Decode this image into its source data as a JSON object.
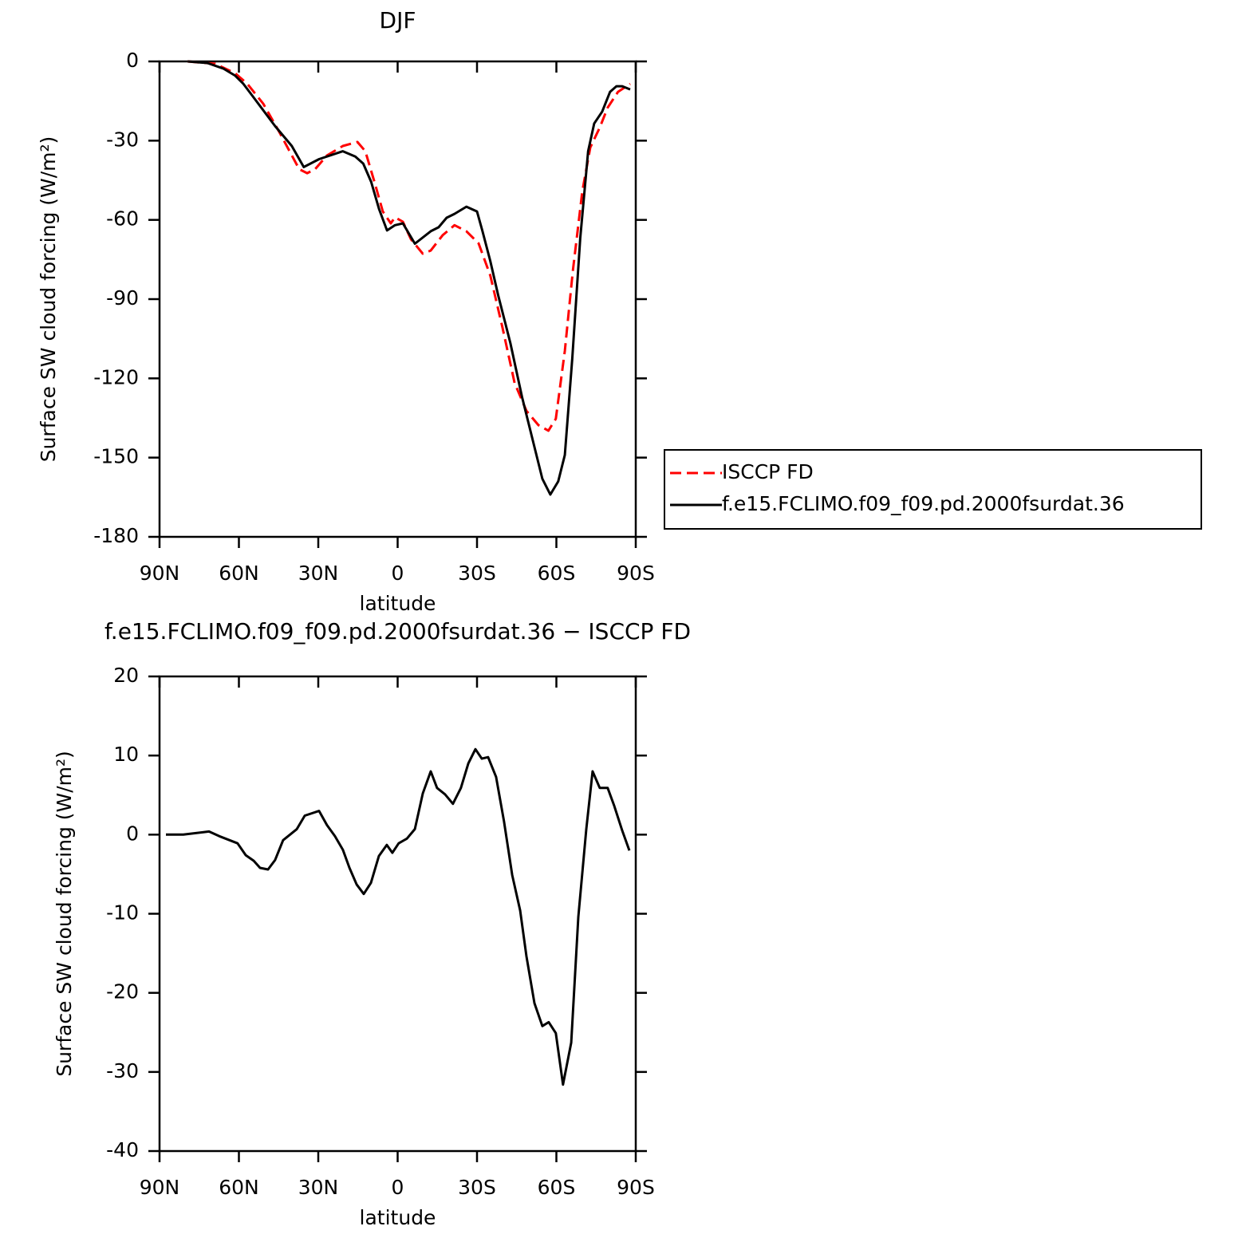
{
  "chart_data": [
    {
      "type": "line",
      "title": "DJF",
      "xlabel": "latitude",
      "ylabel": "Surface SW cloud forcing (W/m²)",
      "xlim": [
        90,
        -90
      ],
      "ylim": [
        -180,
        0
      ],
      "xticks": [
        {
          "value": 90,
          "label": "90N"
        },
        {
          "value": 60,
          "label": "60N"
        },
        {
          "value": 30,
          "label": "30N"
        },
        0,
        {
          "value": -30,
          "label": "30S"
        },
        {
          "value": -60,
          "label": "60S"
        },
        {
          "value": -90,
          "label": "90S"
        }
      ],
      "yticks": [
        0,
        -30,
        -60,
        -90,
        -120,
        -150,
        -180
      ],
      "legend": "outside right",
      "series": [
        {
          "name": "ISCCP FD",
          "color": "#ff0000",
          "dashed": true,
          "x": [
            79.4,
            68.9,
            61.4,
            56.8,
            50.8,
            44.8,
            37.2,
            34.2,
            31.2,
            26.7,
            20.7,
            15.2,
            12.2,
            8.6,
            5.6,
            2.6,
            1.0,
            -2.0,
            -5.0,
            -9.5,
            -12.5,
            -17.0,
            -21.5,
            -26.0,
            -30.6,
            -35.0,
            -39.6,
            -44.2,
            -48.7,
            -53.2,
            -57.0,
            -59.8,
            -63.2,
            -66.2,
            -69.8,
            -72.8,
            -76.4,
            -79.4,
            -83.3,
            -87.9
          ],
          "values": [
            0,
            -0.9,
            -4.5,
            -8.5,
            -16,
            -26.6,
            -40.8,
            -42.3,
            -40.8,
            -35.6,
            -32,
            -30.5,
            -34,
            -46.2,
            -56.8,
            -61.3,
            -59,
            -60.7,
            -67.3,
            -72.8,
            -71.6,
            -65.8,
            -62,
            -64.3,
            -68.9,
            -81,
            -100.6,
            -121.7,
            -132.3,
            -137.7,
            -139.8,
            -135.3,
            -109.6,
            -79.4,
            -49.2,
            -32.6,
            -25,
            -17.5,
            -11.5,
            -8.5
          ]
        },
        {
          "name": "f.e15.FCLIMO.f09_f09.pd.2000fsurdat.36",
          "color": "#000000",
          "dashed": false,
          "x": [
            79.4,
            71.9,
            65.9,
            61.4,
            58.3,
            53.8,
            46.3,
            40.0,
            35.5,
            29.7,
            20.7,
            16.0,
            13.0,
            10.0,
            7.0,
            4.0,
            1.0,
            -2.0,
            -6.5,
            -12.5,
            -15.5,
            -18.5,
            -21.5,
            -26.0,
            -30.0,
            -32.0,
            -35.0,
            -38.0,
            -42.6,
            -47.0,
            -51.7,
            -54.7,
            -57.7,
            -60.7,
            -63.2,
            -66.0,
            -69.0,
            -72.0,
            -74.3,
            -77.3,
            -80.3,
            -82.7,
            -84.9,
            -87.9
          ],
          "values": [
            0,
            -0.6,
            -2.7,
            -5.4,
            -8.5,
            -14.5,
            -24.5,
            -32,
            -40,
            -37,
            -34,
            -36,
            -38.7,
            -45.6,
            -56,
            -64,
            -62,
            -61.3,
            -69,
            -64.3,
            -62.8,
            -59.2,
            -57.7,
            -55,
            -56.8,
            -64,
            -75.5,
            -88.5,
            -106.6,
            -127,
            -146,
            -158,
            -164,
            -159,
            -149,
            -112.6,
            -67,
            -34,
            -23.5,
            -19,
            -11.5,
            -9.4,
            -9.4,
            -10.6
          ]
        }
      ]
    },
    {
      "type": "line",
      "title": "f.e15.FCLIMO.f09_f09.pd.2000fsurdat.36 − ISCCP FD",
      "xlabel": "latitude",
      "ylabel": "Surface SW cloud forcing (W/m²)",
      "xlim": [
        90,
        -90
      ],
      "ylim": [
        -40,
        20
      ],
      "xticks": [
        {
          "value": 90,
          "label": "90N"
        },
        {
          "value": 60,
          "label": "60N"
        },
        {
          "value": 30,
          "label": "30N"
        },
        0,
        {
          "value": -30,
          "label": "30S"
        },
        {
          "value": -60,
          "label": "60S"
        },
        {
          "value": -90,
          "label": "90S"
        }
      ],
      "yticks": [
        20,
        10,
        0,
        -10,
        -20,
        -30,
        -40
      ],
      "series": [
        {
          "color": "#000000",
          "dashed": false,
          "x": [
            87.6,
            81.0,
            71.3,
            67.4,
            60.5,
            57.4,
            54.4,
            52.0,
            49.0,
            46.3,
            43.3,
            38.1,
            35.1,
            29.7,
            26.7,
            23.7,
            20.7,
            18.2,
            15.5,
            12.8,
            10.1,
            7.1,
            4.1,
            2.0,
            -0.4,
            -3.5,
            -6.5,
            -9.5,
            -12.5,
            -14.9,
            -17.9,
            -20.9,
            -23.9,
            -26.7,
            -29.4,
            -31.8,
            -34.2,
            -37.2,
            -40.2,
            -43.3,
            -46.3,
            -48.7,
            -51.7,
            -54.7,
            -57.1,
            -59.8,
            -62.5,
            -65.6,
            -68.3,
            -71.3,
            -73.7,
            -76.4,
            -79.4,
            -81.8,
            -84.9,
            -87.6
          ],
          "values": [
            0,
            0,
            0.4,
            -0.2,
            -1.1,
            -2.6,
            -3.3,
            -4.2,
            -4.4,
            -3.2,
            -0.7,
            0.7,
            2.4,
            3,
            1.2,
            -0.2,
            -1.9,
            -4.2,
            -6.3,
            -7.5,
            -6.1,
            -2.7,
            -1.3,
            -2.3,
            -1.1,
            -0.5,
            0.7,
            5.2,
            8,
            5.9,
            5.1,
            3.9,
            5.9,
            9,
            10.8,
            9.6,
            9.8,
            7.3,
            1.7,
            -5.1,
            -9.6,
            -15.4,
            -21.3,
            -24.2,
            -23.7,
            -25.1,
            -31.6,
            -26.3,
            -10.4,
            0.7,
            8,
            5.9,
            5.9,
            3.7,
            0.5,
            -2
          ]
        }
      ]
    }
  ]
}
